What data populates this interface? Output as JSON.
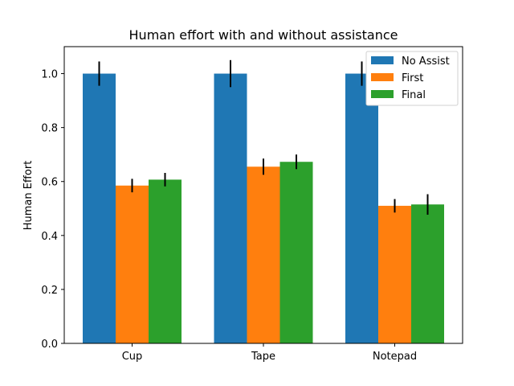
{
  "chart_data": {
    "type": "bar",
    "title": "Human effort with and without assistance",
    "xlabel": "",
    "ylabel": "Human Effort",
    "categories": [
      "Cup",
      "Tape",
      "Notepad"
    ],
    "ylim": [
      0,
      1.1
    ],
    "yticks": [
      "0.0",
      "0.2",
      "0.4",
      "0.6",
      "0.8",
      "1.0"
    ],
    "legend_position": "top-right",
    "grid": false,
    "series": [
      {
        "name": "No Assist",
        "color": "#1f77b4",
        "values": [
          1.0,
          1.0,
          1.0
        ],
        "errors": [
          0.045,
          0.05,
          0.045
        ]
      },
      {
        "name": "First",
        "color": "#ff7f0e",
        "values": [
          0.585,
          0.655,
          0.51
        ],
        "errors": [
          0.025,
          0.03,
          0.025
        ]
      },
      {
        "name": "Final",
        "color": "#2ca02c",
        "values": [
          0.607,
          0.673,
          0.515
        ],
        "errors": [
          0.025,
          0.027,
          0.038
        ]
      }
    ]
  }
}
